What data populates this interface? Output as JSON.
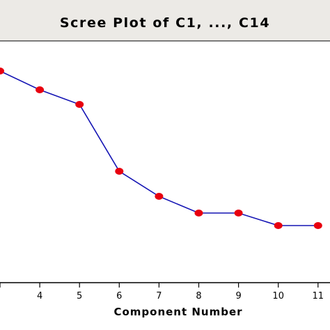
{
  "chart_data": {
    "type": "line",
    "title": "Scree Plot of C1, ..., C14",
    "xlabel": "Component Number",
    "ylabel": "",
    "x": [
      3,
      4,
      5,
      6,
      7,
      8,
      9,
      10,
      11
    ],
    "x_tick_labels": [
      "4",
      "5",
      "6",
      "7",
      "8",
      "9",
      "10",
      "11"
    ],
    "series": [
      {
        "values": [
          0.98,
          0.89,
          0.82,
          0.5,
          0.38,
          0.3,
          0.3,
          0.24,
          0.24
        ]
      }
    ],
    "line_color": "#1414b4",
    "marker_color": "#e8000f",
    "grid": false
  }
}
